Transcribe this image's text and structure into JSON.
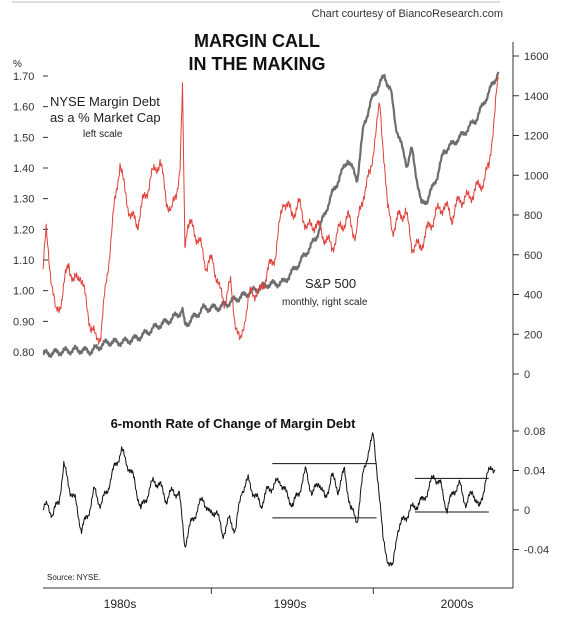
{
  "credit": "Chart courtesy of BiancoResearch.com",
  "source": "Source: NYSE.",
  "colors": {
    "margin_debt": "#e0403a",
    "sp500": "#6e6e6e",
    "roc": "#111111",
    "axis": "#333333"
  },
  "chart_data": [
    {
      "type": "line",
      "title_lines": [
        "MARGIN CALL",
        "IN THE MAKING"
      ],
      "x_categories": [
        "1980s",
        "1990s",
        "2000s"
      ],
      "x_range": [
        1979.0,
        2007.5
      ],
      "left_axis": {
        "unit": "%",
        "ticks": [
          "1.70",
          "1.60",
          "1.50",
          "1.40",
          "1.30",
          "1.20",
          "1.10",
          "1.00",
          "0.90",
          "0.80"
        ],
        "range": [
          0.75,
          1.76
        ]
      },
      "right_axis": {
        "ticks": [
          "1600",
          "1400",
          "1200",
          "1000",
          "800",
          "600",
          "400",
          "200",
          "0"
        ],
        "range": [
          0,
          1650
        ]
      },
      "series": [
        {
          "name": "NYSE Margin Debt as a % Market Cap",
          "label_lines": [
            "NYSE Margin Debt",
            "as a % Market Cap"
          ],
          "scale_note": "left scale",
          "axis": "left",
          "points": [
            [
              1979.0,
              1.07
            ],
            [
              1979.2,
              1.19
            ],
            [
              1979.5,
              1.05
            ],
            [
              1979.8,
              0.92
            ],
            [
              1980.2,
              0.98
            ],
            [
              1980.6,
              1.1
            ],
            [
              1980.9,
              1.02
            ],
            [
              1981.3,
              1.06
            ],
            [
              1981.7,
              0.96
            ],
            [
              1982.0,
              0.88
            ],
            [
              1982.3,
              0.84
            ],
            [
              1982.6,
              0.86
            ],
            [
              1983.0,
              1.05
            ],
            [
              1983.4,
              1.25
            ],
            [
              1983.8,
              1.42
            ],
            [
              1984.1,
              1.32
            ],
            [
              1984.5,
              1.24
            ],
            [
              1984.9,
              1.22
            ],
            [
              1985.3,
              1.3
            ],
            [
              1985.7,
              1.36
            ],
            [
              1986.0,
              1.4
            ],
            [
              1986.3,
              1.42
            ],
            [
              1986.7,
              1.3
            ],
            [
              1987.0,
              1.25
            ],
            [
              1987.3,
              1.32
            ],
            [
              1987.55,
              1.4
            ],
            [
              1987.7,
              1.65
            ],
            [
              1987.85,
              1.15
            ],
            [
              1988.0,
              1.22
            ],
            [
              1988.4,
              1.2
            ],
            [
              1988.8,
              1.15
            ],
            [
              1989.2,
              1.08
            ],
            [
              1989.6,
              1.1
            ],
            [
              1990.0,
              1.0
            ],
            [
              1990.3,
              0.97
            ],
            [
              1990.7,
              1.02
            ],
            [
              1991.0,
              0.9
            ],
            [
              1991.3,
              0.82
            ],
            [
              1991.6,
              0.92
            ],
            [
              1992.0,
              1.0
            ],
            [
              1992.5,
              0.99
            ],
            [
              1993.0,
              1.06
            ],
            [
              1993.5,
              1.12
            ],
            [
              1994.0,
              1.3
            ],
            [
              1994.5,
              1.25
            ],
            [
              1995.0,
              1.28
            ],
            [
              1995.5,
              1.2
            ],
            [
              1996.0,
              1.22
            ],
            [
              1996.5,
              1.18
            ],
            [
              1997.0,
              1.14
            ],
            [
              1997.5,
              1.2
            ],
            [
              1998.0,
              1.24
            ],
            [
              1998.5,
              1.18
            ],
            [
              1999.0,
              1.32
            ],
            [
              1999.4,
              1.38
            ],
            [
              1999.7,
              1.5
            ],
            [
              2000.0,
              1.6
            ],
            [
              2000.3,
              1.42
            ],
            [
              2000.5,
              1.26
            ],
            [
              2000.8,
              1.2
            ],
            [
              2001.2,
              1.24
            ],
            [
              2001.6,
              1.26
            ],
            [
              2002.0,
              1.15
            ],
            [
              2002.5,
              1.14
            ],
            [
              2003.0,
              1.2
            ],
            [
              2003.5,
              1.25
            ],
            [
              2004.0,
              1.28
            ],
            [
              2004.5,
              1.24
            ],
            [
              2005.0,
              1.3
            ],
            [
              2005.5,
              1.3
            ],
            [
              2006.0,
              1.33
            ],
            [
              2006.5,
              1.36
            ],
            [
              2006.8,
              1.4
            ],
            [
              2007.1,
              1.55
            ],
            [
              2007.4,
              1.69
            ]
          ]
        },
        {
          "name": "S&P 500",
          "label_lines": [
            "S&P 500"
          ],
          "scale_note": "monthly, right scale",
          "axis": "right",
          "points": [
            [
              1979.0,
              100
            ],
            [
              1980.0,
              110
            ],
            [
              1981.0,
              122
            ],
            [
              1982.0,
              115
            ],
            [
              1983.0,
              160
            ],
            [
              1984.0,
              160
            ],
            [
              1985.0,
              185
            ],
            [
              1986.0,
              235
            ],
            [
              1987.0,
              275
            ],
            [
              1987.7,
              320
            ],
            [
              1987.85,
              245
            ],
            [
              1988.0,
              255
            ],
            [
              1989.0,
              330
            ],
            [
              1990.0,
              335
            ],
            [
              1991.0,
              375
            ],
            [
              1992.0,
              415
            ],
            [
              1993.0,
              450
            ],
            [
              1994.0,
              460
            ],
            [
              1995.0,
              560
            ],
            [
              1996.0,
              680
            ],
            [
              1997.0,
              900
            ],
            [
              1998.0,
              1080
            ],
            [
              1998.6,
              980
            ],
            [
              1999.0,
              1250
            ],
            [
              1999.5,
              1380
            ],
            [
              2000.0,
              1460
            ],
            [
              2000.3,
              1500
            ],
            [
              2000.7,
              1420
            ],
            [
              2001.0,
              1250
            ],
            [
              2001.7,
              1050
            ],
            [
              2002.0,
              1130
            ],
            [
              2002.6,
              850
            ],
            [
              2003.0,
              880
            ],
            [
              2003.6,
              1000
            ],
            [
              2004.0,
              1120
            ],
            [
              2005.0,
              1190
            ],
            [
              2006.0,
              1280
            ],
            [
              2007.0,
              1450
            ],
            [
              2007.4,
              1520
            ]
          ]
        }
      ]
    },
    {
      "type": "line",
      "title": "6-month Rate of Change of Margin Debt",
      "x_range": [
        1979.0,
        2007.5
      ],
      "y_axis": {
        "ticks": [
          "0.08",
          "0.04",
          "0",
          "-0.04"
        ],
        "range": [
          -0.07,
          0.085
        ]
      },
      "series": [
        {
          "name": "6-month Rate of Change of Margin Debt",
          "points": [
            [
              1979.0,
              0.0
            ],
            [
              1979.3,
              0.005
            ],
            [
              1979.6,
              -0.005
            ],
            [
              1980.0,
              0.01
            ],
            [
              1980.3,
              0.045
            ],
            [
              1980.7,
              0.02
            ],
            [
              1981.0,
              0.01
            ],
            [
              1981.4,
              -0.02
            ],
            [
              1981.8,
              -0.005
            ],
            [
              1982.2,
              0.02
            ],
            [
              1982.6,
              0.005
            ],
            [
              1983.0,
              0.02
            ],
            [
              1983.5,
              0.045
            ],
            [
              1983.9,
              0.06
            ],
            [
              1984.3,
              0.045
            ],
            [
              1984.7,
              0.03
            ],
            [
              1985.1,
              0.0
            ],
            [
              1985.5,
              0.015
            ],
            [
              1985.9,
              0.03
            ],
            [
              1986.3,
              0.025
            ],
            [
              1986.7,
              0.01
            ],
            [
              1987.1,
              0.02
            ],
            [
              1987.5,
              0.015
            ],
            [
              1987.85,
              -0.035
            ],
            [
              1988.2,
              -0.015
            ],
            [
              1988.6,
              0.0
            ],
            [
              1989.0,
              0.012
            ],
            [
              1989.4,
              -0.005
            ],
            [
              1989.8,
              0.0
            ],
            [
              1990.2,
              -0.025
            ],
            [
              1990.6,
              -0.01
            ],
            [
              1991.0,
              -0.02
            ],
            [
              1991.4,
              0.02
            ],
            [
              1991.8,
              0.03
            ],
            [
              1992.2,
              0.015
            ],
            [
              1992.6,
              0.005
            ],
            [
              1993.0,
              0.02
            ],
            [
              1993.4,
              0.025
            ],
            [
              1993.8,
              0.03
            ],
            [
              1994.2,
              0.015
            ],
            [
              1994.6,
              0.005
            ],
            [
              1995.0,
              0.02
            ],
            [
              1995.4,
              0.04
            ],
            [
              1995.8,
              0.015
            ],
            [
              1996.2,
              0.03
            ],
            [
              1996.6,
              0.01
            ],
            [
              1997.0,
              0.035
            ],
            [
              1997.4,
              0.02
            ],
            [
              1997.8,
              0.04
            ],
            [
              1998.2,
              0.0
            ],
            [
              1998.6,
              -0.01
            ],
            [
              1999.0,
              0.04
            ],
            [
              1999.3,
              0.06
            ],
            [
              1999.6,
              0.075
            ],
            [
              1999.9,
              0.03
            ],
            [
              2000.2,
              -0.03
            ],
            [
              2000.5,
              -0.05
            ],
            [
              2000.8,
              -0.06
            ],
            [
              2001.1,
              -0.02
            ],
            [
              2001.5,
              -0.01
            ],
            [
              2001.9,
              0.0
            ],
            [
              2002.3,
              0.005
            ],
            [
              2002.7,
              0.01
            ],
            [
              2003.0,
              0.02
            ],
            [
              2003.4,
              0.035
            ],
            [
              2003.8,
              0.025
            ],
            [
              2004.2,
              0.0
            ],
            [
              2004.6,
              0.02
            ],
            [
              2005.0,
              0.025
            ],
            [
              2005.4,
              0.005
            ],
            [
              2005.8,
              0.02
            ],
            [
              2006.2,
              0.0
            ],
            [
              2006.6,
              0.03
            ],
            [
              2007.0,
              0.045
            ],
            [
              2007.2,
              0.04
            ]
          ]
        }
      ]
    }
  ]
}
